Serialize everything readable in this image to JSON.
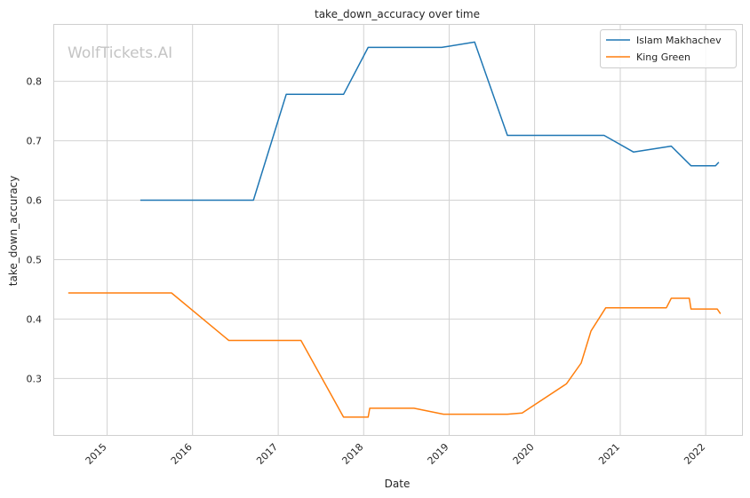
{
  "chart_data": {
    "type": "line",
    "title": "take_down_accuracy over time",
    "xlabel": "Date",
    "ylabel": "take_down_accuracy",
    "watermark": "WolfTickets.AI",
    "x_axis": {
      "type": "date",
      "range": [
        "2014-05-20",
        "2022-06-05"
      ],
      "ticks": [
        "2015",
        "2016",
        "2017",
        "2018",
        "2019",
        "2020",
        "2021",
        "2022"
      ]
    },
    "y_axis": {
      "range": [
        0.205,
        0.895
      ],
      "ticks": [
        "0.3",
        "0.4",
        "0.5",
        "0.6",
        "0.7",
        "0.8"
      ]
    },
    "grid": true,
    "legend_position": "top-right",
    "series": [
      {
        "name": "Islam Makhachev",
        "color": "#1f77b4",
        "points": [
          [
            "2015-05-23",
            0.6
          ],
          [
            "2016-09-17",
            0.6
          ],
          [
            "2017-02-04",
            0.778
          ],
          [
            "2017-10-07",
            0.778
          ],
          [
            "2018-01-20",
            0.857
          ],
          [
            "2018-11-30",
            0.857
          ],
          [
            "2019-04-20",
            0.866
          ],
          [
            "2019-09-07",
            0.709
          ],
          [
            "2020-10-24",
            0.709
          ],
          [
            "2021-02-27",
            0.681
          ],
          [
            "2021-08-07",
            0.691
          ],
          [
            "2021-10-30",
            0.658
          ],
          [
            "2022-02-12",
            0.658
          ],
          [
            "2022-02-26",
            0.664
          ]
        ]
      },
      {
        "name": "King Green",
        "color": "#ff7f0e",
        "points": [
          [
            "2014-07-19",
            0.444
          ],
          [
            "2015-10-03",
            0.444
          ],
          [
            "2016-06-04",
            0.364
          ],
          [
            "2017-04-08",
            0.364
          ],
          [
            "2017-10-07",
            0.235
          ],
          [
            "2018-01-20",
            0.235
          ],
          [
            "2018-01-27",
            0.25
          ],
          [
            "2018-08-04",
            0.25
          ],
          [
            "2018-12-08",
            0.24
          ],
          [
            "2019-09-07",
            0.24
          ],
          [
            "2019-11-09",
            0.242
          ],
          [
            "2020-05-16",
            0.291
          ],
          [
            "2020-07-18",
            0.326
          ],
          [
            "2020-08-29",
            0.38
          ],
          [
            "2020-10-31",
            0.419
          ],
          [
            "2021-07-17",
            0.419
          ],
          [
            "2021-08-07",
            0.435
          ],
          [
            "2021-10-23",
            0.435
          ],
          [
            "2021-10-30",
            0.417
          ],
          [
            "2022-02-19",
            0.417
          ],
          [
            "2022-03-05",
            0.409
          ]
        ]
      }
    ]
  }
}
